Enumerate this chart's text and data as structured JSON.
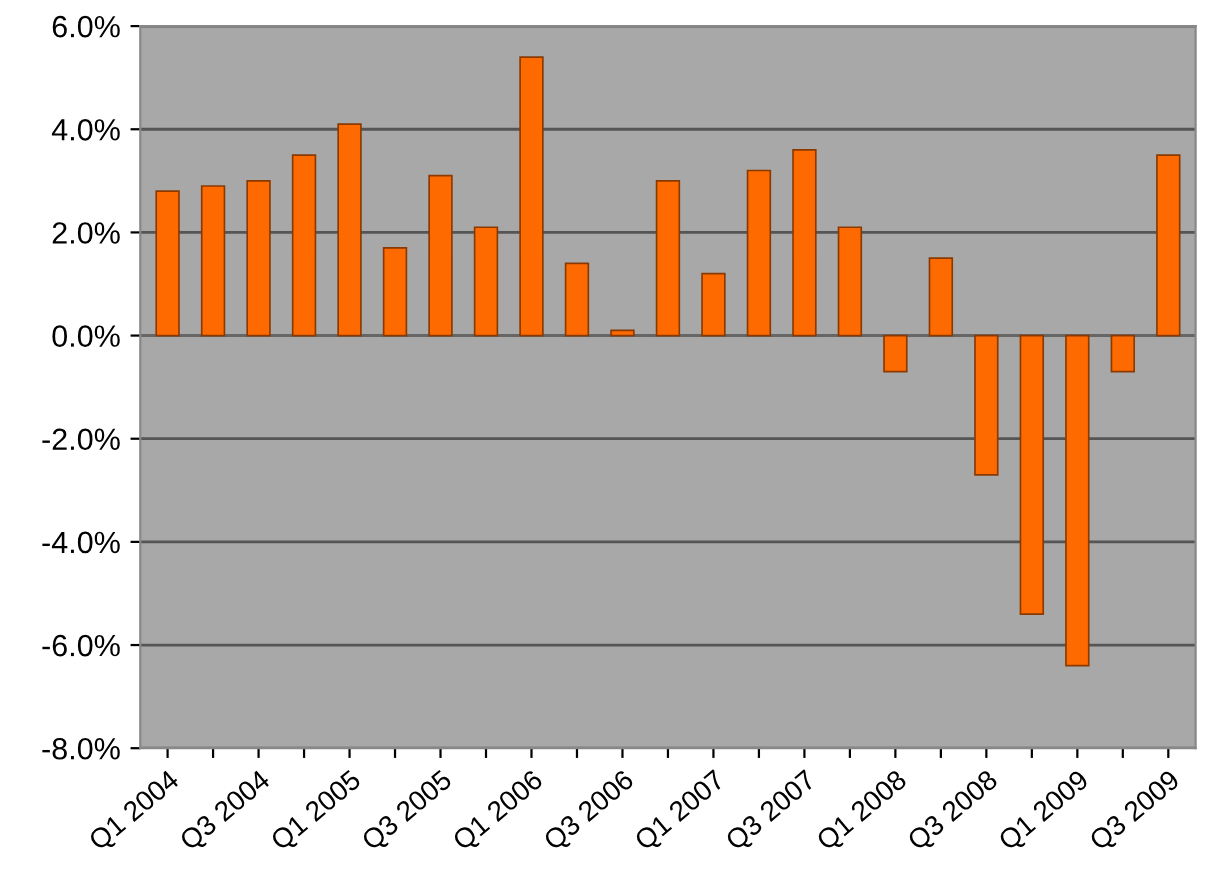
{
  "chart_data": {
    "type": "bar",
    "categories": [
      "Q1 2004",
      null,
      "Q3 2004",
      null,
      "Q1 2005",
      null,
      "Q3 2005",
      null,
      "Q1 2006",
      null,
      "Q3 2006",
      null,
      "Q1 2007",
      null,
      "Q3 2007",
      null,
      "Q1 2008",
      null,
      "Q3 2008",
      null,
      "Q1 2009",
      null,
      "Q3 2009"
    ],
    "values": [
      2.8,
      2.9,
      3.0,
      3.5,
      4.1,
      1.7,
      3.1,
      2.1,
      5.4,
      1.4,
      0.1,
      3.0,
      1.2,
      3.2,
      3.6,
      2.1,
      -0.7,
      1.5,
      -2.7,
      -5.4,
      -6.4,
      -0.7,
      3.5
    ],
    "color": "#ff6a00",
    "ylim": [
      -8,
      6
    ],
    "yticks": [
      {
        "value": -8,
        "label": "-8.0%"
      },
      {
        "value": -6,
        "label": "-6.0%"
      },
      {
        "value": -4,
        "label": "-4.0%"
      },
      {
        "value": -2,
        "label": "-2.0%"
      },
      {
        "value": 0,
        "label": "0.0%"
      },
      {
        "value": 2,
        "label": "2.0%"
      },
      {
        "value": 4,
        "label": "4.0%"
      },
      {
        "value": 6,
        "label": "6.0%"
      }
    ],
    "grid": "y"
  }
}
